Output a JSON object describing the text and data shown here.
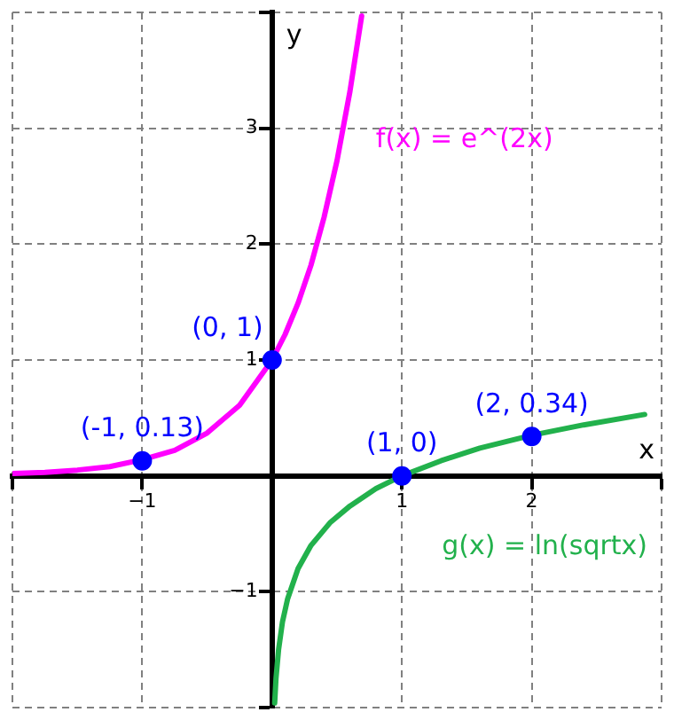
{
  "chart_data": {
    "type": "line",
    "xlabel": "x",
    "ylabel": "y",
    "xlim": [
      -2,
      3
    ],
    "ylim": [
      -2,
      4
    ],
    "xticks": [
      {
        "value": -2,
        "label": null
      },
      -1,
      {
        "value": 0,
        "label": null
      },
      1,
      2,
      {
        "value": 3,
        "label": null
      }
    ],
    "yticks": [
      {
        "value": -2,
        "label": null
      },
      -1,
      {
        "value": 0,
        "label": null
      },
      1,
      2,
      3,
      {
        "value": 4,
        "label": null
      }
    ],
    "grid": true,
    "legend": false,
    "marker": "none",
    "line_style": "solid",
    "series": [
      {
        "name": "f(x) = e^(2x)",
        "color": "#ff00ff",
        "x": [
          -2,
          -1.75,
          -1.5,
          -1.25,
          -1,
          -0.75,
          -0.5,
          -0.25,
          0,
          0.1,
          0.2,
          0.3,
          0.4,
          0.5,
          0.6,
          0.69
        ],
        "values": [
          0.02,
          0.03,
          0.05,
          0.08,
          0.14,
          0.22,
          0.37,
          0.61,
          1,
          1.22,
          1.49,
          1.82,
          2.23,
          2.72,
          3.32,
          3.97
        ]
      },
      {
        "name": "g(x) = ln(sqrtx)",
        "color": "#22b14c",
        "x": [
          0.02,
          0.03,
          0.05,
          0.08,
          0.12,
          0.2,
          0.3,
          0.45,
          0.6,
          0.8,
          1,
          1.3,
          1.6,
          2,
          2.4,
          2.87
        ],
        "values": [
          -1.96,
          -1.75,
          -1.5,
          -1.26,
          -1.06,
          -0.8,
          -0.6,
          -0.4,
          -0.26,
          -0.11,
          0,
          0.13,
          0.24,
          0.35,
          0.44,
          0.53
        ]
      },
      {
        "type": "scatter",
        "color": "#0000ff",
        "marker": "circle",
        "x": [
          -1,
          0,
          1,
          2
        ],
        "values": [
          0.13,
          1,
          0,
          0.34
        ],
        "value_labels": [
          "(-1, 0.13)",
          "(0, 1)",
          "(1, 0)",
          "(2, 0.34)"
        ]
      }
    ]
  }
}
